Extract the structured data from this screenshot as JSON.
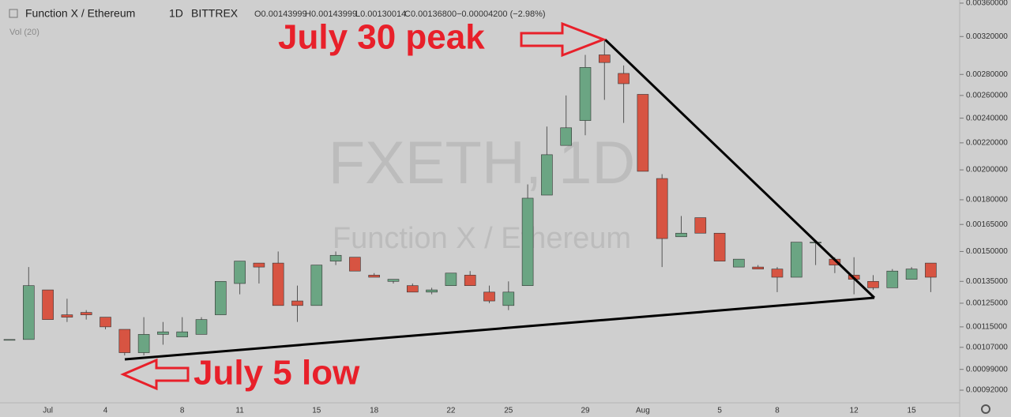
{
  "chart_data": {
    "type": "candlestick",
    "title": "Function X / Ethereum",
    "interval": "1D",
    "exchange": "BITTREX",
    "ohlc_text": [
      "O0.00143999",
      "H0.00143999",
      "L0.00130014",
      "C0.00136800",
      "−0.00004200 (−2.98%)"
    ],
    "volume_label": "Vol (20)",
    "watermark": [
      "FXETH, 1D",
      "Function X / Ethereum"
    ],
    "annotations": [
      "July 30 peak",
      "July 5 low"
    ],
    "categories": [
      null,
      null,
      "Jul",
      null,
      null,
      "4",
      null,
      null,
      null,
      "8",
      null,
      null,
      "11",
      null,
      null,
      null,
      "15",
      null,
      null,
      "18",
      null,
      null,
      null,
      "22",
      null,
      null,
      "25",
      null,
      null,
      null,
      "29",
      null,
      null,
      "Aug",
      null,
      null,
      null,
      "5",
      null,
      null,
      "8",
      null,
      null,
      null,
      "12",
      null,
      null,
      "15",
      null
    ],
    "open": [
      0.0011,
      0.0011,
      0.00131,
      0.0012,
      0.00121,
      0.00119,
      0.00114,
      0.00105,
      0.00112,
      0.00111,
      0.00112,
      0.0012,
      0.00134,
      0.00144,
      0.00144,
      0.00126,
      0.00124,
      0.00145,
      0.00147,
      0.00138,
      0.00135,
      0.00133,
      0.0013,
      0.00133,
      0.00138,
      0.0013,
      0.00124,
      0.00133,
      0.00183,
      0.00218,
      0.00238,
      0.003,
      0.00281,
      0.00261,
      0.00194,
      0.00158,
      0.00169,
      0.0016,
      0.00142,
      0.00142,
      0.00141,
      0.00137,
      0.00155,
      0.00146,
      0.00138,
      0.00135,
      0.00132,
      0.00136,
      0.00144
    ],
    "high": [
      0.0011,
      0.00142,
      0.00131,
      0.00127,
      0.00122,
      0.00119,
      0.00114,
      0.00119,
      0.00117,
      0.00119,
      0.00119,
      0.00135,
      0.00145,
      0.00144,
      0.0015,
      0.00133,
      0.00143,
      0.0015,
      0.00147,
      0.00139,
      0.00136,
      0.00134,
      0.00132,
      0.00139,
      0.0014,
      0.00133,
      0.00135,
      0.0019,
      0.00233,
      0.0026,
      0.003,
      0.00315,
      0.00289,
      0.00261,
      0.00197,
      0.0017,
      0.00169,
      0.0016,
      0.00146,
      0.00143,
      0.00142,
      0.00155,
      0.00156,
      0.00147,
      0.00147,
      0.00138,
      0.00141,
      0.00142,
      0.00144
    ],
    "low": [
      0.0011,
      0.0011,
      0.00118,
      0.00117,
      0.00118,
      0.00114,
      0.00104,
      0.00104,
      0.00108,
      0.00111,
      0.00112,
      0.0012,
      0.00129,
      0.00134,
      0.00124,
      0.00117,
      0.00124,
      0.00143,
      0.0014,
      0.00137,
      0.00134,
      0.0013,
      0.00129,
      0.00133,
      0.00133,
      0.00125,
      0.00122,
      0.00133,
      0.00183,
      0.00218,
      0.00226,
      0.00256,
      0.00236,
      0.00199,
      0.00142,
      0.00158,
      0.0016,
      0.00145,
      0.00142,
      0.00141,
      0.0013,
      0.00137,
      0.00143,
      0.00139,
      0.00129,
      0.00131,
      0.00132,
      0.00136,
      0.0013
    ],
    "close": [
      0.0011,
      0.00133,
      0.00118,
      0.00119,
      0.0012,
      0.00115,
      0.00105,
      0.00112,
      0.00113,
      0.00113,
      0.00118,
      0.00135,
      0.00145,
      0.00142,
      0.00124,
      0.00124,
      0.00143,
      0.00148,
      0.0014,
      0.00137,
      0.00136,
      0.0013,
      0.00131,
      0.00139,
      0.00133,
      0.00126,
      0.0013,
      0.00181,
      0.00211,
      0.00232,
      0.00287,
      0.00292,
      0.00271,
      0.00199,
      0.00157,
      0.0016,
      0.0016,
      0.00145,
      0.00146,
      0.00141,
      0.00137,
      0.00155,
      0.00155,
      0.00143,
      0.00136,
      0.00132,
      0.0014,
      0.00141,
      0.00137
    ],
    "up_color": "#6ba583",
    "down_color": "#d75442",
    "log_scale": true,
    "ylim": [
      0.00088,
      0.00364
    ],
    "yticks": [
      {
        "value": 0.0036,
        "label": "0.00360000"
      },
      {
        "value": 0.0032,
        "label": "0.00320000"
      },
      {
        "value": 0.0028,
        "label": "0.00280000"
      },
      {
        "value": 0.0026,
        "label": "0.00260000"
      },
      {
        "value": 0.0024,
        "label": "0.00240000"
      },
      {
        "value": 0.0022,
        "label": "0.00220000"
      },
      {
        "value": 0.002,
        "label": "0.00200000"
      },
      {
        "value": 0.0018,
        "label": "0.00180000"
      },
      {
        "value": 0.00165,
        "label": "0.00165000"
      },
      {
        "value": 0.0015,
        "label": "0.00150000"
      },
      {
        "value": 0.00135,
        "label": "0.00135000"
      },
      {
        "value": 0.00125,
        "label": "0.00125000"
      },
      {
        "value": 0.00115,
        "label": "0.00115000"
      },
      {
        "value": 0.00107,
        "label": "0.00107000"
      },
      {
        "value": 0.00099,
        "label": "0.00099000"
      },
      {
        "value": 0.00092,
        "label": "0.00092000"
      }
    ]
  }
}
